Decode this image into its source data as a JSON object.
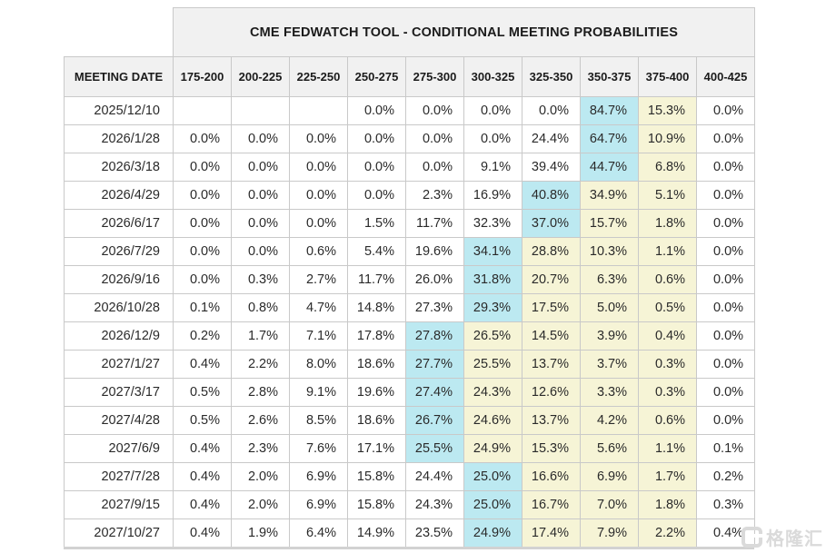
{
  "table": {
    "title": "CME FEDWATCH TOOL - CONDITIONAL MEETING PROBABILITIES",
    "columns": [
      "MEETING DATE",
      "175-200",
      "200-225",
      "225-250",
      "250-275",
      "275-300",
      "300-325",
      "325-350",
      "350-375",
      "375-400",
      "400-425"
    ],
    "rows": [
      {
        "date": "2025/12/10",
        "values": [
          "",
          "",
          "",
          "0.0%",
          "0.0%",
          "0.0%",
          "0.0%",
          "84.7%",
          "15.3%",
          "0.0%"
        ],
        "highlights": [
          "",
          "",
          "",
          "",
          "",
          "",
          "",
          "cyan",
          "yellow",
          ""
        ]
      },
      {
        "date": "2026/1/28",
        "values": [
          "0.0%",
          "0.0%",
          "0.0%",
          "0.0%",
          "0.0%",
          "0.0%",
          "24.4%",
          "64.7%",
          "10.9%",
          "0.0%"
        ],
        "highlights": [
          "",
          "",
          "",
          "",
          "",
          "",
          "",
          "cyan",
          "yellow",
          ""
        ]
      },
      {
        "date": "2026/3/18",
        "values": [
          "0.0%",
          "0.0%",
          "0.0%",
          "0.0%",
          "0.0%",
          "9.1%",
          "39.4%",
          "44.7%",
          "6.8%",
          "0.0%"
        ],
        "highlights": [
          "",
          "",
          "",
          "",
          "",
          "",
          "",
          "cyan",
          "yellow",
          ""
        ]
      },
      {
        "date": "2026/4/29",
        "values": [
          "0.0%",
          "0.0%",
          "0.0%",
          "0.0%",
          "2.3%",
          "16.9%",
          "40.8%",
          "34.9%",
          "5.1%",
          "0.0%"
        ],
        "highlights": [
          "",
          "",
          "",
          "",
          "",
          "",
          "cyan",
          "yellow",
          "yellow",
          ""
        ]
      },
      {
        "date": "2026/6/17",
        "values": [
          "0.0%",
          "0.0%",
          "0.0%",
          "1.5%",
          "11.7%",
          "32.3%",
          "37.0%",
          "15.7%",
          "1.8%",
          "0.0%"
        ],
        "highlights": [
          "",
          "",
          "",
          "",
          "",
          "",
          "cyan",
          "yellow",
          "yellow",
          ""
        ]
      },
      {
        "date": "2026/7/29",
        "values": [
          "0.0%",
          "0.0%",
          "0.6%",
          "5.4%",
          "19.6%",
          "34.1%",
          "28.8%",
          "10.3%",
          "1.1%",
          "0.0%"
        ],
        "highlights": [
          "",
          "",
          "",
          "",
          "",
          "cyan",
          "yellow",
          "yellow",
          "yellow",
          ""
        ]
      },
      {
        "date": "2026/9/16",
        "values": [
          "0.0%",
          "0.3%",
          "2.7%",
          "11.7%",
          "26.0%",
          "31.8%",
          "20.7%",
          "6.3%",
          "0.6%",
          "0.0%"
        ],
        "highlights": [
          "",
          "",
          "",
          "",
          "",
          "cyan",
          "yellow",
          "yellow",
          "yellow",
          ""
        ]
      },
      {
        "date": "2026/10/28",
        "values": [
          "0.1%",
          "0.8%",
          "4.7%",
          "14.8%",
          "27.3%",
          "29.3%",
          "17.5%",
          "5.0%",
          "0.5%",
          "0.0%"
        ],
        "highlights": [
          "",
          "",
          "",
          "",
          "",
          "cyan",
          "yellow",
          "yellow",
          "yellow",
          ""
        ]
      },
      {
        "date": "2026/12/9",
        "values": [
          "0.2%",
          "1.7%",
          "7.1%",
          "17.8%",
          "27.8%",
          "26.5%",
          "14.5%",
          "3.9%",
          "0.4%",
          "0.0%"
        ],
        "highlights": [
          "",
          "",
          "",
          "",
          "cyan",
          "yellow",
          "yellow",
          "yellow",
          "yellow",
          ""
        ]
      },
      {
        "date": "2027/1/27",
        "values": [
          "0.4%",
          "2.2%",
          "8.0%",
          "18.6%",
          "27.7%",
          "25.5%",
          "13.7%",
          "3.7%",
          "0.3%",
          "0.0%"
        ],
        "highlights": [
          "",
          "",
          "",
          "",
          "cyan",
          "yellow",
          "yellow",
          "yellow",
          "yellow",
          ""
        ]
      },
      {
        "date": "2027/3/17",
        "values": [
          "0.5%",
          "2.8%",
          "9.1%",
          "19.6%",
          "27.4%",
          "24.3%",
          "12.6%",
          "3.3%",
          "0.3%",
          "0.0%"
        ],
        "highlights": [
          "",
          "",
          "",
          "",
          "cyan",
          "yellow",
          "yellow",
          "yellow",
          "yellow",
          ""
        ]
      },
      {
        "date": "2027/4/28",
        "values": [
          "0.5%",
          "2.6%",
          "8.5%",
          "18.6%",
          "26.7%",
          "24.6%",
          "13.7%",
          "4.2%",
          "0.6%",
          "0.0%"
        ],
        "highlights": [
          "",
          "",
          "",
          "",
          "cyan",
          "yellow",
          "yellow",
          "yellow",
          "yellow",
          ""
        ]
      },
      {
        "date": "2027/6/9",
        "values": [
          "0.4%",
          "2.3%",
          "7.6%",
          "17.1%",
          "25.5%",
          "24.9%",
          "15.3%",
          "5.6%",
          "1.1%",
          "0.1%"
        ],
        "highlights": [
          "",
          "",
          "",
          "",
          "cyan",
          "yellow",
          "yellow",
          "yellow",
          "yellow",
          ""
        ]
      },
      {
        "date": "2027/7/28",
        "values": [
          "0.4%",
          "2.0%",
          "6.9%",
          "15.8%",
          "24.4%",
          "25.0%",
          "16.6%",
          "6.9%",
          "1.7%",
          "0.2%"
        ],
        "highlights": [
          "",
          "",
          "",
          "",
          "",
          "cyan",
          "yellow",
          "yellow",
          "yellow",
          ""
        ]
      },
      {
        "date": "2027/9/15",
        "values": [
          "0.4%",
          "2.0%",
          "6.9%",
          "15.8%",
          "24.3%",
          "25.0%",
          "16.7%",
          "7.0%",
          "1.8%",
          "0.3%"
        ],
        "highlights": [
          "",
          "",
          "",
          "",
          "",
          "cyan",
          "yellow",
          "yellow",
          "yellow",
          ""
        ]
      },
      {
        "date": "2027/10/27",
        "values": [
          "0.4%",
          "1.9%",
          "6.4%",
          "14.9%",
          "23.5%",
          "24.9%",
          "17.4%",
          "7.9%",
          "2.2%",
          "0.4%"
        ],
        "highlights": [
          "",
          "",
          "",
          "",
          "",
          "cyan",
          "yellow",
          "yellow",
          "yellow",
          ""
        ]
      }
    ]
  },
  "watermark": {
    "text": "格隆汇"
  },
  "colors": {
    "header_bg": "#f1f1f1",
    "border": "#c9c9c9",
    "cyan": "#bce9f1",
    "yellow": "#f6f4d6",
    "watermark": "#dadada"
  }
}
